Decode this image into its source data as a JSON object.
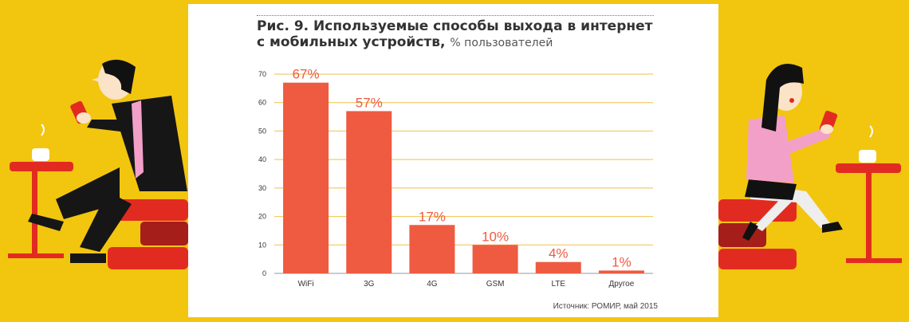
{
  "colors": {
    "background": "#f2c50f",
    "bar": "#ee5b40",
    "value_label": "#ee5b40",
    "grid": "#f0c24a",
    "text": "#333333"
  },
  "header": {
    "title_line1": "Рис. 9. Используемые способы выхода в интернет",
    "title_line2": "с мобильных устройств,",
    "units": "% пользователей"
  },
  "source": "Источник: РОМИР, май 2015",
  "chart_data": {
    "type": "bar",
    "title": "Рис. 9. Используемые способы выхода в интернет с мобильных устройств, % пользователей",
    "categories": [
      "WiFi",
      "3G",
      "4G",
      "GSM",
      "LTE",
      "Другое"
    ],
    "values": [
      67,
      57,
      17,
      10,
      4,
      1
    ],
    "value_labels": [
      "67%",
      "57%",
      "17%",
      "10%",
      "4%",
      "1%"
    ],
    "ylim": [
      0,
      70
    ],
    "yticks": [
      0,
      10,
      20,
      30,
      40,
      50,
      60,
      70
    ],
    "grid": true,
    "xlabel": "",
    "ylabel": ""
  },
  "illustrations": {
    "left": "man-in-suit-with-phone-at-cafe-table",
    "right": "woman-with-phone-at-cafe-table"
  }
}
